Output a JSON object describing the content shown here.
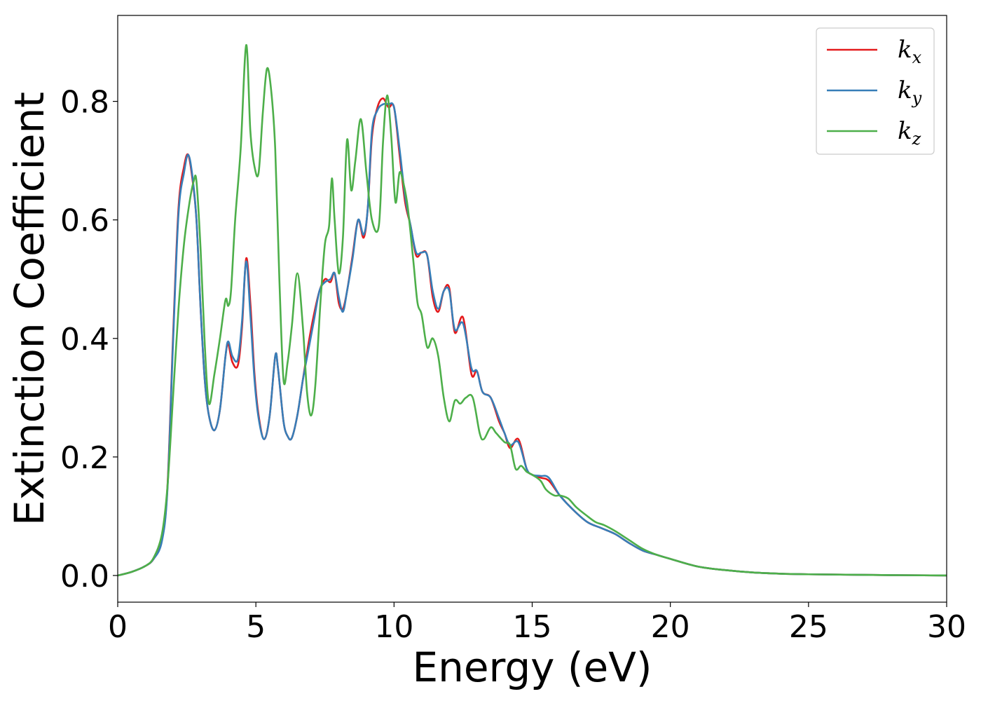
{
  "chart_data": {
    "type": "line",
    "title": "",
    "xlabel": "Energy (eV)",
    "ylabel": "Extinction Coefficient",
    "xlim": [
      0,
      30
    ],
    "ylim": [
      -0.045,
      0.945
    ],
    "xticks": [
      0,
      5,
      10,
      15,
      20,
      25,
      30
    ],
    "xtick_labels": [
      "0",
      "5",
      "10",
      "15",
      "20",
      "25",
      "30"
    ],
    "yticks": [
      0.0,
      0.2,
      0.4,
      0.6,
      0.8
    ],
    "ytick_labels": [
      "0.0",
      "0.2",
      "0.4",
      "0.6",
      "0.8"
    ],
    "grid": false,
    "legend_position": "top-right",
    "series": [
      {
        "name": "k",
        "subscript": "x",
        "color": "#e41a1c",
        "x": [
          0,
          0.5,
          1.0,
          1.3,
          1.6,
          1.8,
          2.0,
          2.2,
          2.4,
          2.55,
          2.7,
          2.85,
          3.0,
          3.15,
          3.3,
          3.5,
          3.7,
          3.9,
          4.0,
          4.15,
          4.35,
          4.5,
          4.65,
          4.8,
          4.95,
          5.1,
          5.3,
          5.5,
          5.7,
          5.8,
          6.0,
          6.15,
          6.3,
          6.5,
          6.7,
          6.9,
          7.1,
          7.3,
          7.5,
          7.7,
          7.85,
          8.0,
          8.15,
          8.3,
          8.5,
          8.7,
          8.9,
          9.05,
          9.2,
          9.4,
          9.6,
          9.8,
          10.0,
          10.2,
          10.4,
          10.6,
          10.8,
          11.0,
          11.2,
          11.4,
          11.6,
          11.8,
          12.0,
          12.2,
          12.5,
          12.8,
          13.0,
          13.2,
          13.5,
          13.8,
          14.0,
          14.2,
          14.5,
          14.8,
          15.0,
          15.3,
          15.6,
          16.0,
          16.5,
          17.0,
          17.5,
          18.0,
          18.5,
          19.0,
          19.5,
          20.0,
          21.0,
          22.0,
          23.0,
          24.0,
          25.0,
          27.0,
          30.0
        ],
        "y": [
          0.0,
          0.006,
          0.016,
          0.028,
          0.06,
          0.15,
          0.4,
          0.62,
          0.69,
          0.71,
          0.67,
          0.6,
          0.45,
          0.33,
          0.27,
          0.245,
          0.28,
          0.37,
          0.39,
          0.36,
          0.355,
          0.42,
          0.535,
          0.46,
          0.34,
          0.27,
          0.23,
          0.27,
          0.37,
          0.35,
          0.26,
          0.235,
          0.232,
          0.27,
          0.33,
          0.39,
          0.44,
          0.48,
          0.5,
          0.495,
          0.51,
          0.46,
          0.45,
          0.48,
          0.54,
          0.6,
          0.57,
          0.62,
          0.74,
          0.79,
          0.805,
          0.79,
          0.79,
          0.71,
          0.63,
          0.59,
          0.54,
          0.545,
          0.54,
          0.47,
          0.445,
          0.48,
          0.485,
          0.41,
          0.435,
          0.34,
          0.345,
          0.31,
          0.3,
          0.26,
          0.24,
          0.215,
          0.23,
          0.18,
          0.17,
          0.165,
          0.16,
          0.135,
          0.11,
          0.09,
          0.08,
          0.07,
          0.055,
          0.042,
          0.035,
          0.028,
          0.015,
          0.009,
          0.005,
          0.003,
          0.002,
          0.001,
          0.0
        ]
      },
      {
        "name": "k",
        "subscript": "y",
        "color": "#377eb8",
        "x": [
          0,
          0.5,
          1.0,
          1.3,
          1.6,
          1.8,
          2.0,
          2.2,
          2.4,
          2.55,
          2.7,
          2.85,
          3.0,
          3.15,
          3.3,
          3.5,
          3.7,
          3.9,
          4.0,
          4.15,
          4.35,
          4.5,
          4.65,
          4.8,
          4.95,
          5.1,
          5.3,
          5.5,
          5.7,
          5.8,
          6.0,
          6.15,
          6.3,
          6.5,
          6.7,
          6.9,
          7.1,
          7.3,
          7.5,
          7.7,
          7.85,
          8.0,
          8.15,
          8.3,
          8.5,
          8.7,
          8.9,
          9.05,
          9.2,
          9.4,
          9.6,
          9.8,
          10.0,
          10.2,
          10.4,
          10.6,
          10.8,
          11.0,
          11.2,
          11.4,
          11.6,
          11.8,
          12.0,
          12.2,
          12.5,
          12.8,
          13.0,
          13.2,
          13.5,
          13.8,
          14.0,
          14.2,
          14.5,
          14.8,
          15.0,
          15.3,
          15.6,
          16.0,
          16.5,
          17.0,
          17.5,
          18.0,
          18.5,
          19.0,
          19.5,
          20.0,
          21.0,
          22.0,
          23.0,
          24.0,
          25.0,
          27.0,
          30.0
        ],
        "y": [
          0.0,
          0.006,
          0.016,
          0.028,
          0.058,
          0.145,
          0.39,
          0.61,
          0.68,
          0.71,
          0.675,
          0.6,
          0.45,
          0.33,
          0.27,
          0.245,
          0.28,
          0.37,
          0.395,
          0.37,
          0.365,
          0.43,
          0.53,
          0.44,
          0.33,
          0.265,
          0.23,
          0.27,
          0.37,
          0.35,
          0.26,
          0.235,
          0.232,
          0.27,
          0.33,
          0.38,
          0.43,
          0.48,
          0.495,
          0.5,
          0.51,
          0.47,
          0.445,
          0.48,
          0.535,
          0.6,
          0.575,
          0.62,
          0.75,
          0.785,
          0.795,
          0.795,
          0.79,
          0.72,
          0.64,
          0.59,
          0.545,
          0.545,
          0.54,
          0.48,
          0.45,
          0.48,
          0.48,
          0.415,
          0.425,
          0.35,
          0.345,
          0.31,
          0.3,
          0.265,
          0.24,
          0.22,
          0.225,
          0.18,
          0.17,
          0.168,
          0.165,
          0.135,
          0.11,
          0.09,
          0.08,
          0.07,
          0.055,
          0.042,
          0.035,
          0.028,
          0.015,
          0.009,
          0.005,
          0.003,
          0.002,
          0.001,
          0.0
        ]
      },
      {
        "name": "k",
        "subscript": "z",
        "color": "#4daf4a",
        "x": [
          0,
          0.5,
          1.0,
          1.3,
          1.6,
          1.8,
          2.0,
          2.2,
          2.4,
          2.6,
          2.75,
          2.85,
          3.0,
          3.15,
          3.3,
          3.5,
          3.7,
          3.9,
          4.0,
          4.1,
          4.25,
          4.45,
          4.65,
          4.8,
          4.95,
          5.1,
          5.25,
          5.4,
          5.55,
          5.7,
          5.85,
          6.0,
          6.15,
          6.3,
          6.5,
          6.7,
          6.85,
          7.0,
          7.15,
          7.35,
          7.5,
          7.65,
          7.75,
          7.85,
          8.0,
          8.15,
          8.3,
          8.45,
          8.6,
          8.8,
          9.0,
          9.2,
          9.45,
          9.6,
          9.75,
          9.9,
          10.05,
          10.2,
          10.35,
          10.5,
          10.7,
          10.85,
          11.0,
          11.2,
          11.4,
          11.6,
          11.8,
          12.0,
          12.2,
          12.4,
          12.6,
          12.85,
          13.1,
          13.25,
          13.5,
          13.7,
          14.0,
          14.2,
          14.4,
          14.6,
          14.8,
          15.0,
          15.3,
          15.5,
          15.8,
          16.0,
          16.3,
          16.6,
          17.0,
          17.3,
          17.6,
          18.0,
          18.5,
          19.0,
          19.5,
          20.0,
          21.0,
          22.0,
          23.0,
          24.0,
          25.0,
          27.0,
          30.0
        ],
        "y": [
          0.0,
          0.006,
          0.016,
          0.03,
          0.07,
          0.15,
          0.3,
          0.45,
          0.56,
          0.63,
          0.665,
          0.665,
          0.55,
          0.39,
          0.29,
          0.34,
          0.4,
          0.465,
          0.455,
          0.48,
          0.6,
          0.72,
          0.895,
          0.75,
          0.69,
          0.68,
          0.78,
          0.855,
          0.82,
          0.72,
          0.5,
          0.33,
          0.36,
          0.42,
          0.51,
          0.42,
          0.31,
          0.27,
          0.32,
          0.47,
          0.56,
          0.59,
          0.67,
          0.6,
          0.51,
          0.57,
          0.735,
          0.65,
          0.7,
          0.77,
          0.68,
          0.6,
          0.59,
          0.73,
          0.81,
          0.74,
          0.63,
          0.68,
          0.66,
          0.62,
          0.53,
          0.46,
          0.44,
          0.385,
          0.4,
          0.37,
          0.3,
          0.26,
          0.295,
          0.29,
          0.3,
          0.3,
          0.24,
          0.23,
          0.25,
          0.24,
          0.225,
          0.22,
          0.18,
          0.185,
          0.175,
          0.17,
          0.16,
          0.145,
          0.135,
          0.135,
          0.13,
          0.115,
          0.1,
          0.09,
          0.085,
          0.075,
          0.06,
          0.045,
          0.035,
          0.028,
          0.015,
          0.009,
          0.005,
          0.003,
          0.002,
          0.001,
          0.0
        ]
      }
    ]
  }
}
